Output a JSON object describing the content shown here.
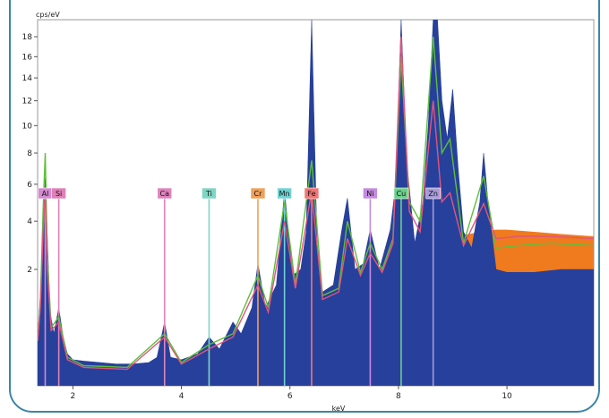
{
  "chart_data": {
    "type": "area",
    "ylabel": "cps/eV",
    "xlabel": "keV",
    "xlim": [
      1.35,
      11.6
    ],
    "ylim": [
      0,
      19.8
    ],
    "y_scale": "sqrt",
    "x_ticks": [
      2,
      4,
      6,
      8,
      10
    ],
    "y_ticks": [
      2,
      4,
      6,
      8,
      10,
      12,
      14,
      16,
      18
    ],
    "grid": false,
    "colors": {
      "blue": "#27409b",
      "orange": "#f07a1e",
      "green": "#5dbf3a",
      "pink": "#e0557e"
    },
    "element_markers": [
      {
        "label": "Al",
        "x": 1.49,
        "color": "#d48bd0"
      },
      {
        "label": "Si",
        "x": 1.74,
        "color": "#e080b8"
      },
      {
        "label": "Ca",
        "x": 3.69,
        "color": "#e083bd"
      },
      {
        "label": "Ti",
        "x": 4.51,
        "color": "#7fd6c4"
      },
      {
        "label": "Cr",
        "x": 5.41,
        "color": "#f0a05a"
      },
      {
        "label": "Mn",
        "x": 5.9,
        "color": "#6fd2d2"
      },
      {
        "label": "Fe",
        "x": 6.4,
        "color": "#f07575"
      },
      {
        "label": "Ni",
        "x": 7.48,
        "color": "#c58be0"
      },
      {
        "label": "Cu",
        "x": 8.05,
        "color": "#6bd08a"
      },
      {
        "label": "Zn",
        "x": 8.64,
        "color": "#a79bd8"
      }
    ],
    "series": [
      {
        "name": "",
        "color": "#27409b",
        "x": [
          1.35,
          1.4,
          1.45,
          1.49,
          1.53,
          1.58,
          1.65,
          1.74,
          1.82,
          1.9,
          2.0,
          2.2,
          2.5,
          2.8,
          3.1,
          3.4,
          3.55,
          3.69,
          3.8,
          4.0,
          4.3,
          4.51,
          4.7,
          4.95,
          5.1,
          5.3,
          5.41,
          5.55,
          5.75,
          5.9,
          6.05,
          6.2,
          6.3,
          6.4,
          6.5,
          6.6,
          6.8,
          6.95,
          7.06,
          7.2,
          7.35,
          7.48,
          7.65,
          7.85,
          7.95,
          8.05,
          8.15,
          8.3,
          8.45,
          8.55,
          8.64,
          8.72,
          8.8,
          8.9,
          9.0,
          9.1,
          9.2,
          9.35,
          9.5,
          9.57,
          9.65,
          9.8,
          10.0,
          10.5,
          11.0,
          11.6
        ],
        "y": [
          0.3,
          1.2,
          4.0,
          6.4,
          3.2,
          0.8,
          0.4,
          0.9,
          0.35,
          0.15,
          0.1,
          0.09,
          0.08,
          0.07,
          0.07,
          0.08,
          0.12,
          0.6,
          0.12,
          0.1,
          0.15,
          0.35,
          0.2,
          0.6,
          0.4,
          0.9,
          2.2,
          0.9,
          1.5,
          5.6,
          1.8,
          2.0,
          3.5,
          25.0,
          3.0,
          1.3,
          1.5,
          3.5,
          5.2,
          2.0,
          2.2,
          3.6,
          2.0,
          3.6,
          6.0,
          25.0,
          7.5,
          3.0,
          5.0,
          10.0,
          25.0,
          25.0,
          12.0,
          9.0,
          13.0,
          7.0,
          3.5,
          2.8,
          5.0,
          8.0,
          5.0,
          2.0,
          1.9,
          1.9,
          2.0,
          2.0
        ]
      },
      {
        "name": "",
        "color": "#f07a1e",
        "x": [
          6.6,
          6.8,
          7.0,
          7.3,
          7.6,
          7.9,
          8.3,
          8.6,
          9.0,
          9.3,
          9.5,
          9.8,
          10.0,
          10.5,
          11.0,
          11.6
        ],
        "y": [
          1.3,
          1.5,
          1.6,
          1.8,
          2.0,
          2.2,
          2.6,
          3.0,
          3.3,
          3.4,
          3.5,
          3.6,
          3.6,
          3.5,
          3.4,
          3.3
        ]
      },
      {
        "name": "",
        "color": "#5dbf3a",
        "x": [
          1.35,
          1.4,
          1.45,
          1.49,
          1.53,
          1.6,
          1.74,
          1.9,
          2.2,
          3.0,
          3.69,
          4.0,
          4.51,
          4.95,
          5.41,
          5.6,
          5.9,
          6.1,
          6.4,
          6.6,
          6.9,
          7.06,
          7.3,
          7.48,
          7.7,
          7.9,
          8.05,
          8.2,
          8.4,
          8.64,
          8.8,
          8.95,
          9.2,
          9.57,
          9.8,
          10.2,
          10.8,
          11.6
        ],
        "y": [
          0.3,
          1.0,
          4.5,
          8.0,
          2.5,
          0.5,
          0.7,
          0.12,
          0.06,
          0.05,
          0.4,
          0.08,
          0.25,
          0.4,
          1.8,
          0.9,
          5.0,
          1.5,
          7.5,
          1.2,
          1.4,
          4.0,
          1.9,
          3.0,
          2.0,
          3.2,
          16.0,
          5.0,
          4.0,
          18.0,
          8.0,
          9.0,
          3.0,
          6.5,
          2.8,
          2.9,
          3.0,
          2.9
        ]
      },
      {
        "name": "",
        "color": "#e0557e",
        "x": [
          1.35,
          1.4,
          1.45,
          1.49,
          1.53,
          1.6,
          1.74,
          1.9,
          2.2,
          3.0,
          3.69,
          4.0,
          4.51,
          4.95,
          5.41,
          5.6,
          5.9,
          6.1,
          6.4,
          6.6,
          6.9,
          7.06,
          7.3,
          7.48,
          7.7,
          7.9,
          8.05,
          8.2,
          8.4,
          8.64,
          8.8,
          8.95,
          9.2,
          9.57,
          9.8,
          10.2,
          10.8,
          11.6
        ],
        "y": [
          0.3,
          0.9,
          3.5,
          5.5,
          2.0,
          0.45,
          0.6,
          0.1,
          0.05,
          0.04,
          0.35,
          0.07,
          0.2,
          0.35,
          1.5,
          0.8,
          4.0,
          1.4,
          5.6,
          1.1,
          1.3,
          3.2,
          1.8,
          2.6,
          1.9,
          3.0,
          18.0,
          4.5,
          3.5,
          12.0,
          5.0,
          5.5,
          2.9,
          4.9,
          3.2,
          3.3,
          3.3,
          3.2
        ]
      }
    ]
  }
}
